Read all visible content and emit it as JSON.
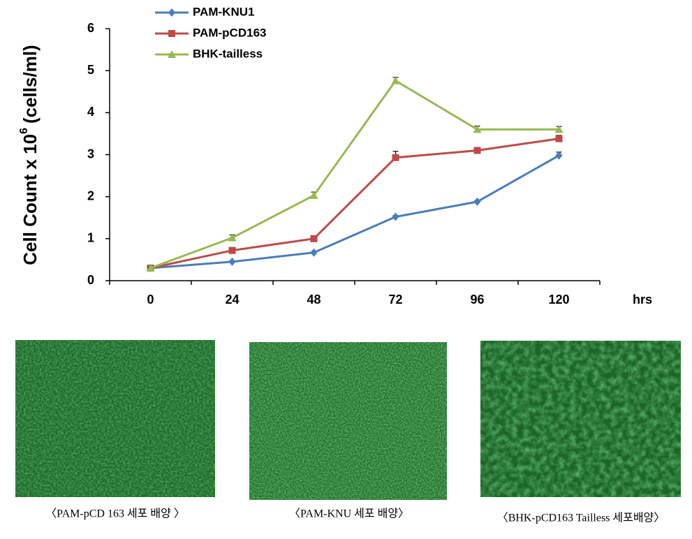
{
  "chart_data": {
    "type": "line",
    "ylabel": [
      "Cell Count x 10",
      "6",
      "(cells/ml)"
    ],
    "xlabel": "hrs",
    "categories": [
      "0",
      "24",
      "48",
      "72",
      "96",
      "120"
    ],
    "series": [
      {
        "name": "PAM-KNU1",
        "color": "#4a7ebb",
        "marker": "diamond",
        "values": [
          0.3,
          0.45,
          0.67,
          1.52,
          1.88,
          2.98
        ],
        "errors": [
          0.02,
          0.02,
          0.02,
          0.03,
          0.03,
          0.08
        ]
      },
      {
        "name": "PAM-pCD163",
        "color": "#be4b48",
        "marker": "square",
        "values": [
          0.3,
          0.72,
          1.0,
          2.93,
          3.1,
          3.38
        ],
        "errors": [
          0.02,
          0.03,
          0.03,
          0.15,
          0.03,
          0.08
        ]
      },
      {
        "name": "BHK-tailless",
        "color": "#98b954",
        "marker": "triangle",
        "values": [
          0.3,
          1.02,
          2.03,
          4.76,
          3.6,
          3.6
        ],
        "errors": [
          0.02,
          0.07,
          0.08,
          0.08,
          0.08,
          0.07
        ]
      }
    ],
    "ylim": [
      0,
      6
    ],
    "yticks": [
      0,
      1,
      2,
      3,
      4,
      5,
      6
    ],
    "grid": false,
    "legend": "top-left"
  },
  "panels": [
    {
      "caption": "〈PAM-pCD 163 세포 배양 〉"
    },
    {
      "caption": "〈PAM-KNU 세포 배양〉"
    },
    {
      "caption": "〈BHK-pCD163 Tailless 세포배양〉"
    }
  ]
}
